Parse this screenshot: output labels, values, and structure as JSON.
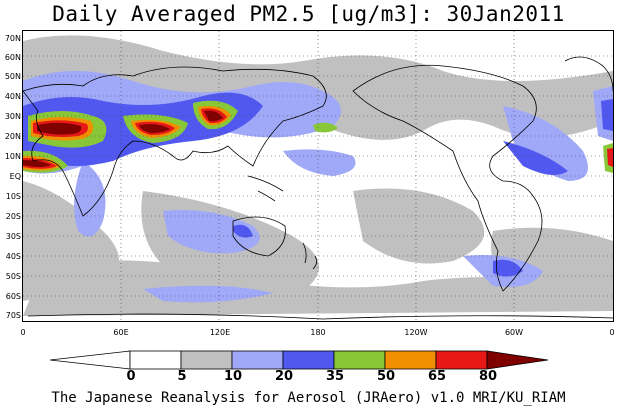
{
  "title": "Daily Averaged PM2.5 [ug/m3]: 30Jan2011",
  "footer": "The Japanese Reanalysis for Aerosol (JRAero) v1.0 MRI/KU_RIAM",
  "lat_labels": [
    "70N",
    "60N",
    "50N",
    "40N",
    "30N",
    "20N",
    "10N",
    "EQ",
    "10S",
    "20S",
    "30S",
    "40S",
    "50S",
    "60S",
    "70S"
  ],
  "lon_labels": [
    "0",
    "60E",
    "120E",
    "180",
    "120W",
    "60W",
    "0"
  ],
  "colorbar": {
    "labels": [
      "0",
      "5",
      "10",
      "20",
      "35",
      "50",
      "65",
      "80"
    ],
    "colors": [
      "#ffffff",
      "#c0c0c0",
      "#a0a8f8",
      "#5058f0",
      "#88c838",
      "#f09000",
      "#e81818",
      "#800000"
    ]
  }
}
